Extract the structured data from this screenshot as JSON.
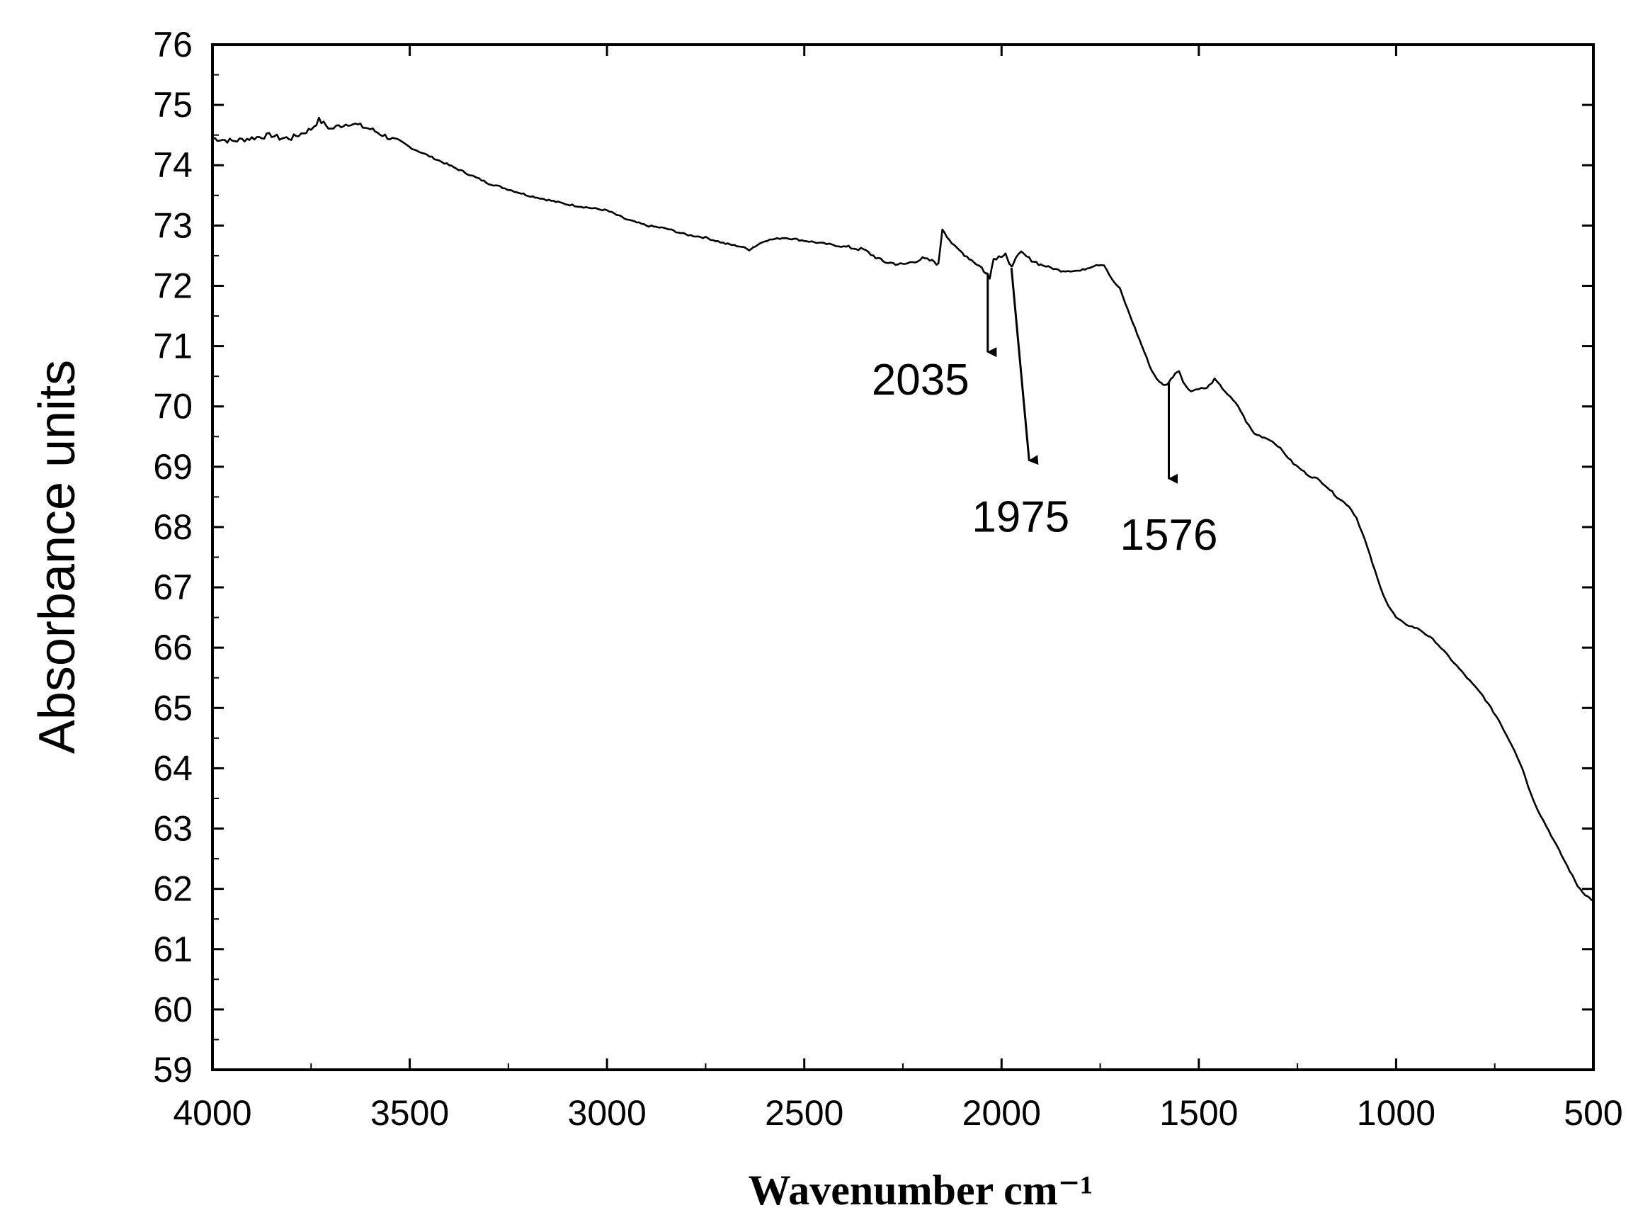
{
  "chart_data": {
    "type": "line",
    "title": "",
    "xlabel": "Wavenumber cm⁻¹",
    "ylabel": "Absorbance units",
    "xlim": [
      4000,
      500
    ],
    "ylim": [
      59,
      76
    ],
    "x_reversed": true,
    "grid": false,
    "legend": "none",
    "x_ticks": [
      4000,
      3500,
      3000,
      2500,
      2000,
      1500,
      1000,
      500
    ],
    "y_ticks": [
      59,
      60,
      61,
      62,
      63,
      64,
      65,
      66,
      67,
      68,
      69,
      70,
      71,
      72,
      73,
      74,
      75,
      76
    ],
    "series": [
      {
        "color": "#000000",
        "x": [
          4000,
          3950,
          3900,
          3850,
          3830,
          3800,
          3750,
          3730,
          3700,
          3680,
          3650,
          3600,
          3550,
          3500,
          3450,
          3400,
          3300,
          3200,
          3100,
          3000,
          2950,
          2900,
          2850,
          2800,
          2750,
          2700,
          2660,
          2640,
          2600,
          2550,
          2500,
          2450,
          2400,
          2350,
          2300,
          2250,
          2200,
          2170,
          2160,
          2150,
          2120,
          2100,
          2070,
          2050,
          2040,
          2035,
          2030,
          2020,
          2000,
          1990,
          1980,
          1975,
          1970,
          1950,
          1930,
          1900,
          1850,
          1800,
          1760,
          1740,
          1720,
          1700,
          1680,
          1650,
          1620,
          1600,
          1585,
          1576,
          1560,
          1550,
          1540,
          1520,
          1500,
          1480,
          1460,
          1440,
          1420,
          1400,
          1380,
          1360,
          1340,
          1320,
          1300,
          1280,
          1260,
          1240,
          1220,
          1200,
          1180,
          1150,
          1120,
          1100,
          1080,
          1060,
          1040,
          1020,
          1000,
          980,
          960,
          940,
          920,
          900,
          880,
          860,
          840,
          820,
          800,
          780,
          760,
          740,
          720,
          700,
          680,
          670,
          660,
          640,
          620,
          600,
          580,
          560,
          540,
          520,
          510,
          500
        ],
        "y": [
          74.45,
          74.4,
          74.45,
          74.5,
          74.45,
          74.45,
          74.6,
          74.75,
          74.6,
          74.65,
          74.7,
          74.6,
          74.45,
          74.3,
          74.15,
          74.0,
          73.7,
          73.5,
          73.35,
          73.25,
          73.1,
          73.0,
          72.95,
          72.85,
          72.8,
          72.7,
          72.65,
          72.6,
          72.75,
          72.8,
          72.75,
          72.7,
          72.65,
          72.6,
          72.4,
          72.35,
          72.45,
          72.4,
          72.35,
          72.95,
          72.65,
          72.55,
          72.4,
          72.3,
          72.2,
          72.2,
          72.15,
          72.45,
          72.5,
          72.55,
          72.35,
          72.3,
          72.4,
          72.55,
          72.45,
          72.35,
          72.25,
          72.25,
          72.35,
          72.35,
          72.1,
          71.95,
          71.6,
          71.1,
          70.6,
          70.4,
          70.35,
          70.4,
          70.55,
          70.6,
          70.4,
          70.25,
          70.3,
          70.3,
          70.45,
          70.3,
          70.15,
          70.0,
          69.75,
          69.55,
          69.5,
          69.45,
          69.35,
          69.2,
          69.05,
          68.95,
          68.85,
          68.8,
          68.7,
          68.5,
          68.35,
          68.15,
          67.8,
          67.4,
          67.0,
          66.7,
          66.5,
          66.4,
          66.35,
          66.3,
          66.2,
          66.1,
          65.95,
          65.8,
          65.65,
          65.5,
          65.35,
          65.2,
          65.0,
          64.8,
          64.55,
          64.3,
          64.0,
          63.8,
          63.6,
          63.3,
          63.05,
          62.8,
          62.55,
          62.3,
          62.05,
          61.9,
          61.85,
          61.8
        ]
      }
    ],
    "annotations": [
      {
        "text": "2035",
        "x": 2035,
        "y_from": 72.2,
        "y_to": 70.9
      },
      {
        "text": "1975",
        "x": 1975,
        "y_from": 72.3,
        "y_to": 69.1
      },
      {
        "text": "1576",
        "x": 1576,
        "y_from": 70.4,
        "y_to": 68.8
      }
    ]
  }
}
